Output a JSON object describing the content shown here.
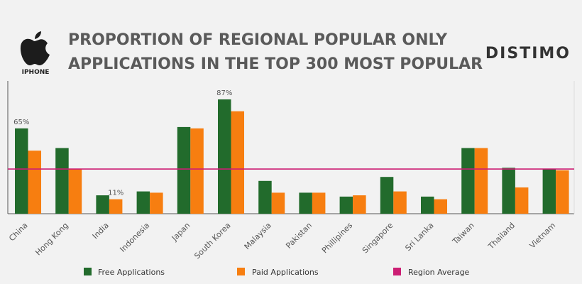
{
  "header": {
    "platform_label": "IPHONE",
    "title_line1": "PROPORTION OF REGIONAL POPULAR ONLY",
    "title_line2": "APPLICATIONS IN THE TOP 300 MOST POPULAR",
    "brand": "DISTIMO"
  },
  "colors": {
    "free": "#226b2c",
    "paid": "#f77e10",
    "average": "#cc1f74",
    "background": "#f2f2f2",
    "axis": "#555555",
    "gridline": "#dcdcdc"
  },
  "icons": {
    "platform": "apple-logo-icon"
  },
  "chart_data": {
    "type": "bar",
    "categories": [
      "China",
      "Hong Kong",
      "India",
      "Indonesia",
      "Japan",
      "South Korea",
      "Malaysia",
      "Pakistan",
      "Phillipines",
      "Singapore",
      "Sri Lanka",
      "Taiwan",
      "Thailand",
      "Vietnam"
    ],
    "series": [
      {
        "name": "Free Applications",
        "values": [
          65,
          50,
          14,
          17,
          66,
          87,
          25,
          16,
          13,
          28,
          13,
          50,
          35,
          34
        ]
      },
      {
        "name": "Paid Applications",
        "values": [
          48,
          34,
          11,
          16,
          65,
          78,
          16,
          16,
          14,
          17,
          11,
          50,
          20,
          33
        ]
      }
    ],
    "region_average": {
      "name": "Region Average",
      "value": 34
    },
    "data_labels": [
      {
        "category": "China",
        "series": "Free Applications",
        "text": "65%"
      },
      {
        "category": "South Korea",
        "series": "Free Applications",
        "text": "87%"
      },
      {
        "category": "India",
        "series": "Paid Applications",
        "text": "11%"
      }
    ],
    "ylim": [
      0,
      100
    ],
    "xlabel": "",
    "ylabel": "",
    "grid": false,
    "legend_position": "bottom"
  }
}
